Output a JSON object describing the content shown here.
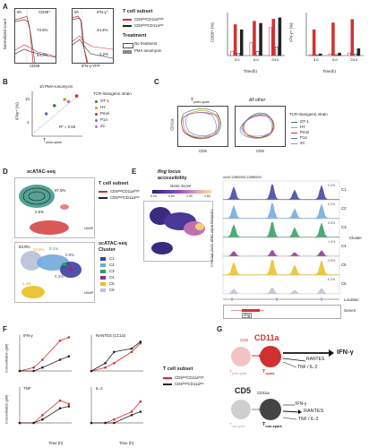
{
  "panels": {
    "A": "A",
    "B": "B",
    "C": "C",
    "D": "D",
    "E": "E",
    "F": "F",
    "G": "G"
  },
  "a": {
    "time1": "6h",
    "time2": "6h",
    "h1": "CD69⁺",
    "h2": "IFN-γ⁺",
    "ylab": "Normalized count",
    "x1": "CD69",
    "x2": "IFN-γ-YFP",
    "p1": "73.5%",
    "p2": "64.0%",
    "p3": "44.4%",
    "p4": "2.2%",
    "legend_title": "T cell subset",
    "leg1": "CD5ˡᵒʷCD11aʰⁱᵍʰ",
    "leg2": "CD5ʰⁱᵍʰCD11aˡᵒʷ",
    "treat_title": "Treatment",
    "tr1": "No treatment",
    "tr2": "PMA Ionomycin"
  },
  "chart_data": [
    {
      "type": "bar",
      "ylabel": "CD69+ (%)",
      "xlabel": "Time(h)",
      "categories": [
        "3.0",
        "6.0",
        "24.0"
      ],
      "ylim": [
        0,
        100
      ],
      "series": [
        {
          "name": "CD5lowCD11ahigh No treatment",
          "values": [
            10,
            30,
            65
          ]
        },
        {
          "name": "CD5lowCD11ahigh PMA Ionomycin",
          "values": [
            72,
            80,
            85
          ]
        },
        {
          "name": "CD5highCD11alow No treatment",
          "values": [
            5,
            10,
            20
          ]
        },
        {
          "name": "CD5highCD11alow PMA Ionomycin",
          "values": [
            60,
            75,
            88
          ]
        }
      ]
    },
    {
      "type": "bar",
      "ylabel": "IFN-γ+ (%)",
      "xlabel": "Time(h)",
      "categories": [
        "3.0",
        "6.0",
        "24.0"
      ],
      "ylim": [
        0,
        50
      ],
      "series": [
        {
          "name": "CD5lowCD11ahigh No treatment",
          "values": [
            1,
            2,
            3
          ]
        },
        {
          "name": "CD5lowCD11ahigh PMA Ionomycin",
          "values": [
            30,
            38,
            42
          ]
        },
        {
          "name": "CD5highCD11alow No treatment",
          "values": [
            1,
            1,
            2
          ]
        },
        {
          "name": "CD5highCD11alow PMA Ionomycin",
          "values": [
            2,
            3,
            8
          ]
        }
      ]
    },
    {
      "type": "scatter",
      "title": "1h PMA-Ionomycin",
      "ylabel": "IFNγ+ (%)",
      "xlabel": "T proto-spark",
      "annotation": "R² = 0.65",
      "series": [
        {
          "name": "OT-1",
          "x": [
            3
          ],
          "y": [
            9
          ]
        },
        {
          "name": "HY",
          "x": [
            5
          ],
          "y": [
            14
          ]
        },
        {
          "name": "Pmel",
          "x": [
            9
          ],
          "y": [
            18
          ]
        },
        {
          "name": "P14",
          "x": [
            2
          ],
          "y": [
            5
          ]
        },
        {
          "name": "2C",
          "x": [
            6
          ],
          "y": [
            12
          ]
        }
      ]
    },
    {
      "type": "line",
      "ylabel": "Concentration (pM)",
      "xlabel": "Time (h)",
      "series": [
        {
          "name": "IFN-γ CD5lowCD11ahigh",
          "x": [
            1,
            3,
            6,
            24,
            48
          ],
          "y": [
            0.01,
            0.02,
            0.1,
            5,
            10
          ]
        },
        {
          "name": "IFN-γ CD5highCD11alow",
          "x": [
            1,
            3,
            6,
            24,
            48
          ],
          "y": [
            0.01,
            0.01,
            0.02,
            0.1,
            0.2
          ]
        }
      ]
    }
  ],
  "b": {
    "title": "1h PMA-Ionomycin",
    "ylab": "IFNγ+ (%)",
    "xlab": "T",
    "xsub": "proto-spark",
    "r2": "R² = 0.65",
    "tick10": "10",
    "tick1": "1",
    "legtitle": "TCR-transgenic strain",
    "strains": [
      {
        "name": "OT-1",
        "color": "#3a7d3a"
      },
      {
        "name": "HY",
        "color": "#c9a21c"
      },
      {
        "name": "Pmel",
        "color": "#c8391e"
      },
      {
        "name": "P14",
        "color": "#5b6fd8"
      },
      {
        "name": "2C",
        "color": "#b07bd0"
      }
    ]
  },
  "c": {
    "t1": "T",
    "t1sub": "proto-spark",
    "t2": "All other",
    "ylab": "CD11a",
    "xlab": "CD5",
    "legtitle": "TCR-transgenic strain"
  },
  "d": {
    "title": "scATAC-seq",
    "p1": "97.5%",
    "p2": "2.5%",
    "legtitle": "T cell subset",
    "leg1": "CD5ˡᵒʷCD11aʰⁱᵍʰ",
    "leg2": "CD5ʰⁱᵍʰCD11aˡᵒʷ",
    "title2": "scATAC-seq",
    "title3": "Cluster",
    "q1": "83.9%",
    "q2": "13.6%",
    "q3": "0.1%",
    "q4": "0.8%",
    "q5": "0.3%",
    "q6": "1.4%",
    "clusters": [
      {
        "name": "C1",
        "color": "#3b3f9e"
      },
      {
        "name": "C2",
        "color": "#6fa8dc"
      },
      {
        "name": "C3",
        "color": "#2e9b5a"
      },
      {
        "name": "C4",
        "color": "#8e2c8e"
      },
      {
        "name": "C5",
        "color": "#e8c020"
      },
      {
        "name": "C6",
        "color": "#b8c0d8"
      }
    ],
    "umap": "UMAP"
  },
  "e": {
    "title": "Ifng locus",
    "title2": "accessibility",
    "gene_score": "Gene Score",
    "gmin": "0.00",
    "g1": "0.50",
    "g2": "1.00",
    "g3": "1.50",
    "coord": "chr10:118960000-118980000",
    "ylab": "Coverage (norm. ATAC signal Range(0-)",
    "cluster": "Cluster",
    "tracks": [
      {
        "c": "C1",
        "pct": "0.2%"
      },
      {
        "c": "C2",
        "pct": "0.2%"
      },
      {
        "c": "C3",
        "pct": "0.5%"
      },
      {
        "c": "C4",
        "pct": "1.4%"
      },
      {
        "c": "C5",
        "pct": "0.8%"
      },
      {
        "c": "C6",
        "pct": "0.2%"
      }
    ],
    "location": "Location",
    "genes": "Genes",
    "gene": "Ifng"
  },
  "f": {
    "ylab": "Concentration (pM)",
    "xlab": "Time (h)",
    "p1": "IFN-γ",
    "p2": "RANTES (CCL5)",
    "p3": "TNF",
    "p4": "IL-2",
    "legtitle": "T cell subset",
    "leg1": "CD5ˡᵒʷCD11aʰⁱᵍʰ",
    "leg2": "CD5ʰⁱᵍʰCD11aˡᵒʷ"
  },
  "g": {
    "cd5": "CD5",
    "cd11a": "CD11a",
    "proto": "T",
    "protosub": "proto-spark",
    "spark": "T",
    "sparksub": "spark",
    "ifng": "IFN-γ",
    "rantes": "RANTES",
    "tnf": "TNF / IL-2",
    "cd5b": "CD5",
    "cd11ab": "CD11a",
    "nonspark": "T",
    "nonsparksub": "non-spark"
  }
}
